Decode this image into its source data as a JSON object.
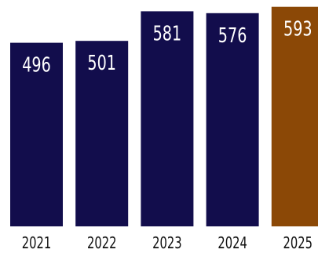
{
  "chart_data": {
    "type": "bar",
    "categories": [
      "2021",
      "2022",
      "2023",
      "2024",
      "2025"
    ],
    "values": [
      496,
      501,
      581,
      576,
      593
    ],
    "title": "",
    "xlabel": "",
    "ylabel": "",
    "grid": false,
    "legend": "none",
    "colors": {
      "bar": "#120d4c",
      "highlight": "#8b4806",
      "value_label": "#ffffff",
      "tick_label": "#111111"
    },
    "highlight_index": 4
  }
}
